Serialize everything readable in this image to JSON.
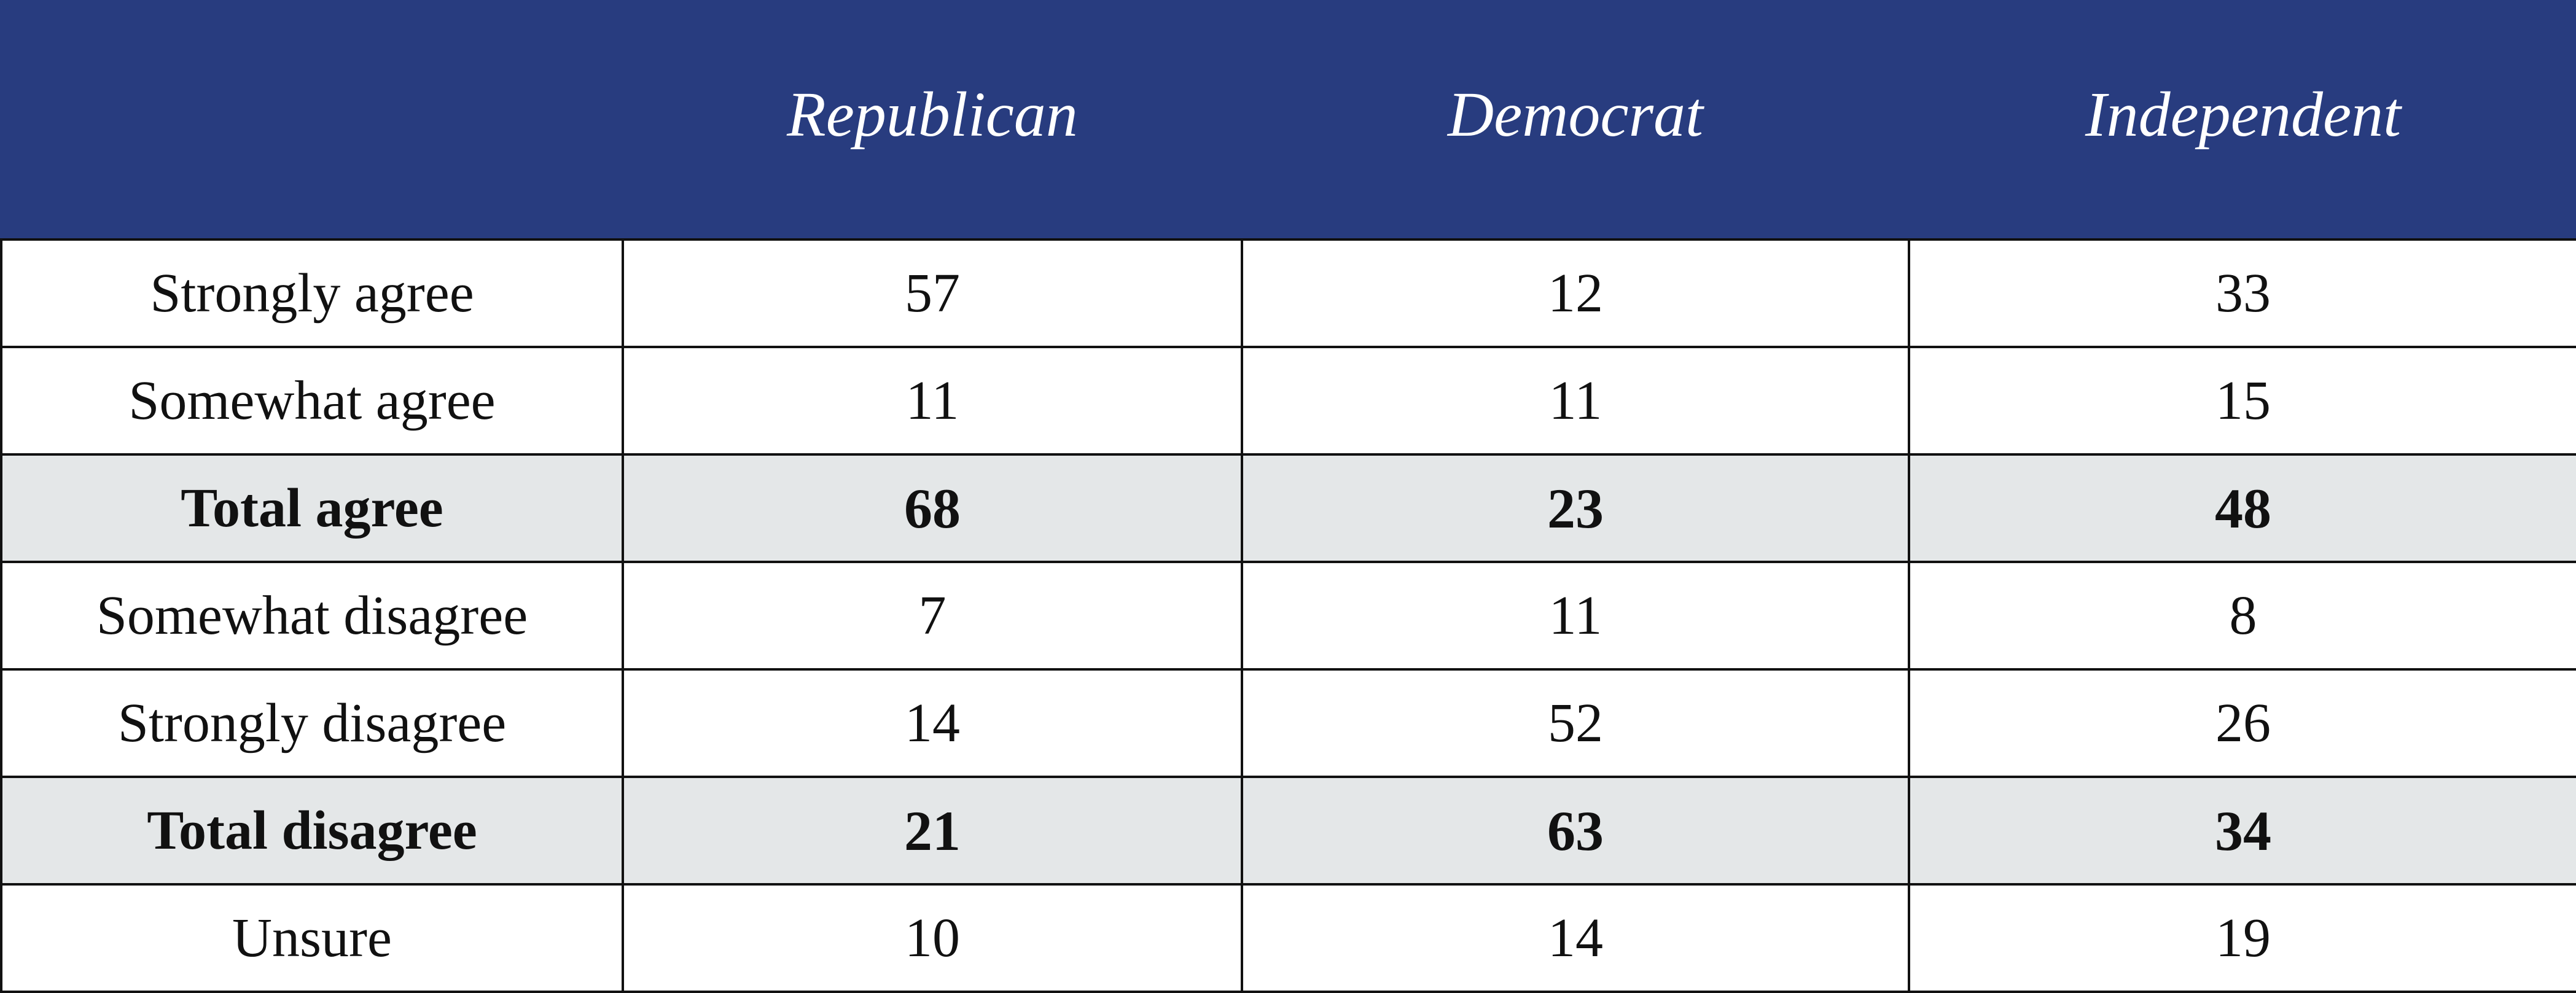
{
  "chart_data": {
    "type": "table",
    "columns": [
      "",
      "Republican",
      "Democrat",
      "Independent"
    ],
    "rows": [
      {
        "label": "Strongly agree",
        "values": [
          57,
          12,
          33
        ],
        "total": false
      },
      {
        "label": "Somewhat agree",
        "values": [
          11,
          11,
          15
        ],
        "total": false
      },
      {
        "label": "Total agree",
        "values": [
          68,
          23,
          48
        ],
        "total": true
      },
      {
        "label": "Somewhat disagree",
        "values": [
          7,
          11,
          8
        ],
        "total": false
      },
      {
        "label": "Strongly disagree",
        "values": [
          14,
          52,
          26
        ],
        "total": false
      },
      {
        "label": "Total disagree",
        "values": [
          21,
          63,
          34
        ],
        "total": true
      },
      {
        "label": "Unsure",
        "values": [
          10,
          14,
          19
        ],
        "total": false
      }
    ]
  },
  "colors": {
    "header_background": "#283c7f",
    "header_text": "#ffffff",
    "total_row_background": "#e4e7e8",
    "grid_lines": "#111111"
  }
}
